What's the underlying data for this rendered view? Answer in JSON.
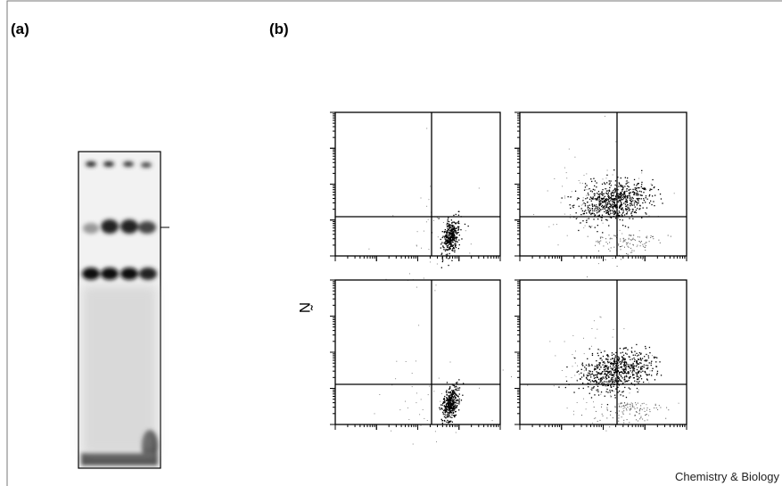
{
  "panels": {
    "a": {
      "label": "(a)"
    },
    "b": {
      "label": "(b)",
      "axis_label": "Ñ"
    }
  },
  "footer": {
    "journal": "Chemistry & Biology"
  }
}
